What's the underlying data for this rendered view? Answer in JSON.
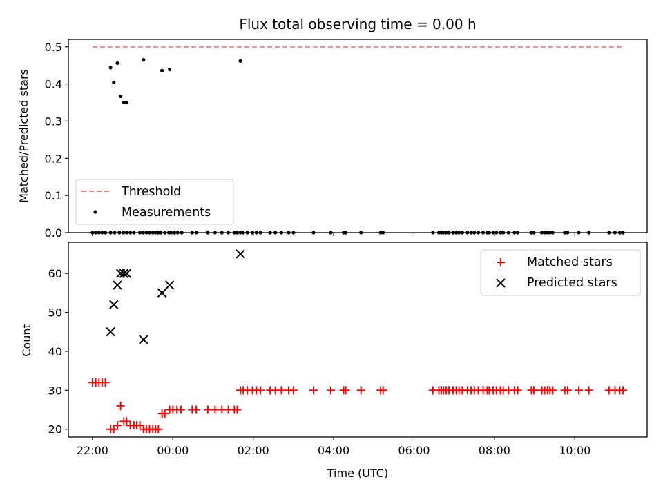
{
  "title": "Flux total observing time = 0.00 h",
  "colors": {
    "matched": "#ff0000",
    "predicted": "#000000",
    "threshold": "#f08080",
    "measurement": "#000000"
  },
  "chart_data": [
    {
      "type": "scatter",
      "panel": "top",
      "title": "Flux total observing time = 0.00 h",
      "ylabel": "Matched/Predicted stars",
      "ylim": [
        0,
        0.52
      ],
      "yticks": [
        "0.0",
        "0.1",
        "0.2",
        "0.3",
        "0.4",
        "0.5"
      ],
      "legend": {
        "placement": "lower-left",
        "entries": [
          "Threshold",
          "Measurements"
        ]
      },
      "threshold": {
        "name": "Threshold",
        "value": 0.5,
        "x_range": [
          -2.0,
          11.2
        ]
      },
      "series": [
        {
          "name": "Measurements",
          "x": [
            -2.0,
            -1.92,
            -1.84,
            -1.76,
            -1.68,
            -1.55,
            -1.45,
            -1.33,
            -1.23,
            -1.15,
            -1.06,
            -0.97,
            -0.82,
            -0.74,
            -0.66,
            -0.58,
            -0.5,
            -0.43,
            -0.36,
            -0.3,
            -0.2,
            -0.1,
            -0.05,
            0.04,
            0.12,
            0.22,
            0.48,
            0.58,
            0.87,
            1.05,
            1.22,
            1.38,
            1.53,
            1.6,
            1.68,
            1.75,
            1.85,
            1.98,
            2.08,
            2.18,
            2.42,
            2.55,
            2.7,
            2.88,
            3.0,
            3.5,
            3.93,
            4.25,
            4.3,
            4.68,
            5.17,
            5.23,
            6.47,
            6.62,
            6.68,
            6.73,
            6.8,
            6.87,
            6.97,
            7.05,
            7.12,
            7.2,
            7.33,
            7.42,
            7.5,
            7.6,
            7.72,
            7.82,
            7.87,
            7.97,
            8.05,
            8.15,
            8.22,
            8.35,
            8.5,
            8.58,
            8.92,
            8.98,
            9.18,
            9.25,
            9.32,
            9.38,
            9.45,
            9.75,
            9.82,
            10.1,
            10.35,
            10.85,
            11.0,
            11.12,
            11.2,
            -1.55,
            -1.47,
            -1.38,
            -1.3,
            -1.22,
            -1.15,
            -0.73,
            -0.27,
            -0.08,
            1.68
          ],
          "y": [
            0,
            0,
            0,
            0,
            0,
            0,
            0,
            0,
            0,
            0,
            0,
            0,
            0,
            0,
            0,
            0,
            0,
            0,
            0,
            0,
            0,
            0,
            0,
            0,
            0,
            0,
            0,
            0,
            0,
            0,
            0,
            0,
            0,
            0,
            0,
            0,
            0,
            0,
            0,
            0,
            0,
            0,
            0,
            0,
            0,
            0,
            0,
            0,
            0,
            0,
            0,
            0,
            0,
            0,
            0,
            0,
            0,
            0,
            0,
            0,
            0,
            0,
            0,
            0,
            0,
            0,
            0,
            0,
            0,
            0,
            0,
            0,
            0,
            0,
            0,
            0,
            0,
            0,
            0,
            0,
            0,
            0,
            0,
            0,
            0,
            0,
            0,
            0,
            0,
            0,
            0,
            0.444,
            0.404,
            0.456,
            0.367,
            0.35,
            0.35,
            0.465,
            0.436,
            0.439,
            0.462
          ]
        }
      ]
    },
    {
      "type": "scatter",
      "panel": "bottom",
      "xlabel": "Time (UTC)",
      "ylabel": "Count",
      "ylim": [
        18,
        68
      ],
      "yticks": [
        "20",
        "30",
        "40",
        "50",
        "60"
      ],
      "xlim": [
        -2.6,
        11.8
      ],
      "xticks": [
        {
          "value": -2,
          "label": "22:00"
        },
        {
          "value": 0,
          "label": "00:00"
        },
        {
          "value": 2,
          "label": "02:00"
        },
        {
          "value": 4,
          "label": "04:00"
        },
        {
          "value": 6,
          "label": "06:00"
        },
        {
          "value": 8,
          "label": "08:00"
        },
        {
          "value": 10,
          "label": "10:00"
        }
      ],
      "legend": {
        "placement": "upper-right",
        "entries": [
          "Matched stars",
          "Predicted stars"
        ]
      },
      "series": [
        {
          "name": "Matched stars",
          "x": [
            -2.0,
            -1.92,
            -1.84,
            -1.76,
            -1.68,
            -1.55,
            -1.47,
            -1.38,
            -1.3,
            -1.22,
            -1.15,
            -1.06,
            -0.97,
            -0.9,
            -0.82,
            -0.73,
            -0.66,
            -0.58,
            -0.5,
            -0.43,
            -0.36,
            -0.27,
            -0.2,
            -0.08,
            0.0,
            0.1,
            0.2,
            0.48,
            0.58,
            0.87,
            1.05,
            1.22,
            1.38,
            1.53,
            1.6,
            1.68,
            1.75,
            1.85,
            1.98,
            2.08,
            2.18,
            2.42,
            2.55,
            2.7,
            2.88,
            3.0,
            3.5,
            3.93,
            4.25,
            4.3,
            4.68,
            5.17,
            5.23,
            6.47,
            6.62,
            6.68,
            6.73,
            6.8,
            6.87,
            6.97,
            7.05,
            7.12,
            7.2,
            7.33,
            7.42,
            7.5,
            7.6,
            7.72,
            7.82,
            7.87,
            7.97,
            8.05,
            8.15,
            8.22,
            8.35,
            8.5,
            8.58,
            8.92,
            8.98,
            9.18,
            9.25,
            9.32,
            9.38,
            9.45,
            9.75,
            9.82,
            10.1,
            10.35,
            10.85,
            11.0,
            11.12,
            11.2
          ],
          "y": [
            32,
            32,
            32,
            32,
            32,
            20,
            20,
            21,
            26,
            22,
            22,
            21,
            21,
            21,
            21,
            20,
            20,
            20,
            20,
            20,
            20,
            24,
            24,
            25,
            25,
            25,
            25,
            25,
            25,
            25,
            25,
            25,
            25,
            25,
            25,
            30,
            30,
            30,
            30,
            30,
            30,
            30,
            30,
            30,
            30,
            30,
            30,
            30,
            30,
            30,
            30,
            30,
            30,
            30,
            30,
            30,
            30,
            30,
            30,
            30,
            30,
            30,
            30,
            30,
            30,
            30,
            30,
            30,
            30,
            30,
            30,
            30,
            30,
            30,
            30,
            30,
            30,
            30,
            30,
            30,
            30,
            30,
            30,
            30,
            30,
            30,
            30,
            30,
            30,
            30,
            30,
            30
          ]
        },
        {
          "name": "Predicted stars",
          "x": [
            -1.55,
            -1.47,
            -1.38,
            -1.3,
            -1.22,
            -1.15,
            -0.73,
            -0.27,
            -0.08,
            1.68
          ],
          "y": [
            45,
            52,
            57,
            60,
            60,
            60,
            43,
            55,
            57,
            65
          ]
        }
      ]
    }
  ]
}
